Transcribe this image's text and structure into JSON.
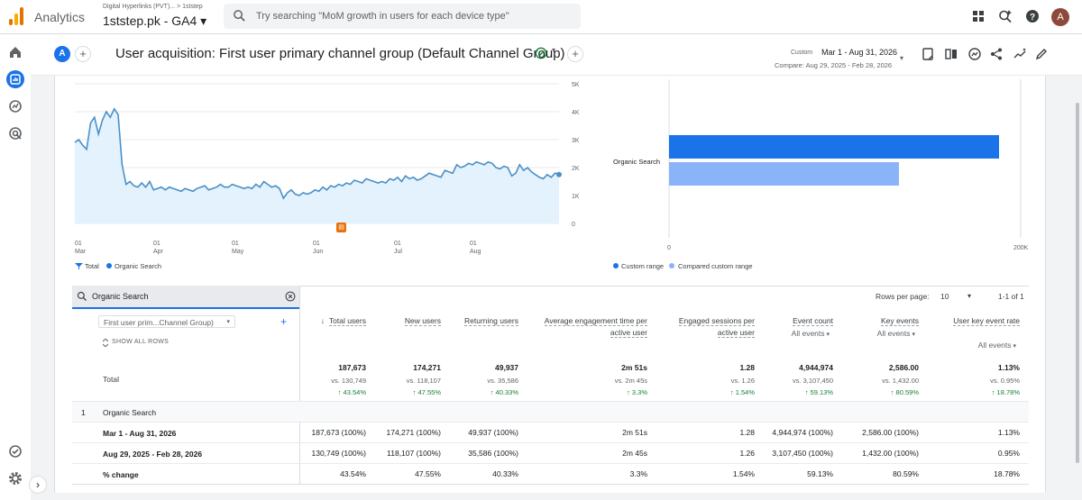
{
  "app": {
    "name": "Analytics",
    "property_crumb": "Digital Hyperlinks (PVT)... > 1ststep",
    "property_name": "1ststep.pk - GA4 ▾",
    "search_placeholder": "Try searching \"MoM growth in users for each device type\"",
    "avatar_letter": "A"
  },
  "header": {
    "compare_badge": "A",
    "title": "User acquisition: First user primary channel group (Default Channel Group)",
    "date_label": "Custom",
    "date_range": "Mar 1 - Aug 31, 2026",
    "compare_text": "Compare: Aug 29, 2025 - Feb 28, 2026"
  },
  "colors": {
    "primary": "#1a73e8",
    "compared": "#8ab4f8",
    "line": "#4a90c8",
    "area": "#e3f2fc",
    "positive": "#188038"
  },
  "chart_data": [
    {
      "type": "line",
      "x_ticks": [
        [
          "01",
          "Mar"
        ],
        [
          "01",
          "Apr"
        ],
        [
          "01",
          "May"
        ],
        [
          "01",
          "Jun"
        ],
        [
          "01",
          "Jul"
        ],
        [
          "01",
          "Aug"
        ]
      ],
      "y_ticks": [
        "5K",
        "4K",
        "3K",
        "2K",
        "1K",
        "0"
      ],
      "ylim": [
        0,
        5000
      ],
      "series": [
        {
          "name": "Organic Search",
          "values": [
            2900,
            3000,
            2800,
            2650,
            3600,
            3800,
            3200,
            3700,
            4000,
            3800,
            4100,
            3900,
            2100,
            1400,
            1500,
            1350,
            1300,
            1450,
            1300,
            1500,
            1200,
            1250,
            1300,
            1200,
            1300,
            1250,
            1200,
            1150,
            1250,
            1200,
            1150,
            1250,
            1300,
            1350,
            1200,
            1250,
            1300,
            1400,
            1300,
            1300,
            1400,
            1350,
            1300,
            1250,
            1300,
            1250,
            1400,
            1300,
            1500,
            1400,
            1300,
            1350,
            1250,
            900,
            1100,
            1200,
            1050,
            1000,
            1100,
            1050,
            1100,
            1200,
            1150,
            1300,
            1200,
            1350,
            1300,
            1400,
            1350,
            1450,
            1400,
            1550,
            1500,
            1450,
            1600,
            1550,
            1500,
            1450,
            1500,
            1450,
            1600,
            1550,
            1650,
            1500,
            1700,
            1600,
            1650,
            1550,
            1600,
            1700,
            1800,
            1750,
            1700,
            1650,
            1900,
            1850,
            1800,
            2100,
            2000,
            2050,
            2150,
            2100,
            2200,
            2150,
            2100,
            2200,
            2150,
            2000,
            1950,
            2050,
            2000,
            1700,
            1800,
            2100,
            1900,
            2000,
            1850,
            1750,
            1650,
            1600,
            1750,
            1650,
            1800,
            1750
          ]
        }
      ],
      "legend": [
        "Total",
        "Organic Search"
      ],
      "annotation": "event marker"
    },
    {
      "type": "bar",
      "orientation": "horizontal",
      "categories": [
        "Organic Search"
      ],
      "xlim": [
        0,
        200000
      ],
      "x_ticks": [
        "0",
        "200K"
      ],
      "series": [
        {
          "name": "Custom range",
          "values": [
            187673
          ]
        },
        {
          "name": "Compared custom range",
          "values": [
            130749
          ]
        }
      ]
    }
  ],
  "table": {
    "search_value": "Organic Search",
    "rows_per_page_label": "Rows per page:",
    "rows_per_page": "10",
    "pagination": "1-1 of 1",
    "dimension": "First user prim...Channel Group)",
    "show_all_rows": "SHOW ALL ROWS",
    "columns": [
      {
        "label": "Total users",
        "sub": ""
      },
      {
        "label": "New users",
        "sub": ""
      },
      {
        "label": "Returning users",
        "sub": ""
      },
      {
        "label": "Average engagement time per active user",
        "sub": ""
      },
      {
        "label": "Engaged sessions per active user",
        "sub": ""
      },
      {
        "label": "Event count",
        "sub": "All events"
      },
      {
        "label": "Key events",
        "sub": "All events"
      },
      {
        "label": "User key event rate",
        "sub": "All events"
      }
    ],
    "total": {
      "label": "Total",
      "values": [
        "187,673",
        "174,271",
        "49,937",
        "2m 51s",
        "1.28",
        "4,944,974",
        "2,586.00",
        "1.13%"
      ],
      "vs": [
        "vs. 130,749",
        "vs. 118,107",
        "vs. 35,586",
        "vs. 2m 45s",
        "vs. 1.26",
        "vs. 3,107,450",
        "vs. 1,432.00",
        "vs. 0.95%"
      ],
      "change": [
        "43.54%",
        "47.55%",
        "40.33%",
        "3.3%",
        "1.54%",
        "59.13%",
        "80.59%",
        "18.78%"
      ]
    },
    "group": {
      "index": "1",
      "label": "Organic Search"
    },
    "rows": [
      {
        "label": "Mar 1 - Aug 31, 2026",
        "values": [
          "187,673 (100%)",
          "174,271 (100%)",
          "49,937 (100%)",
          "2m 51s",
          "1.28",
          "4,944,974 (100%)",
          "2,586.00 (100%)",
          "1.13%"
        ]
      },
      {
        "label": "Aug 29, 2025 - Feb 28, 2026",
        "values": [
          "130,749 (100%)",
          "118,107 (100%)",
          "35,586 (100%)",
          "2m 45s",
          "1.26",
          "3,107,450 (100%)",
          "1,432.00 (100%)",
          "0.95%"
        ]
      },
      {
        "label": "% change",
        "values": [
          "43.54%",
          "47.55%",
          "40.33%",
          "3.3%",
          "1.54%",
          "59.13%",
          "80.59%",
          "18.78%"
        ]
      }
    ]
  }
}
